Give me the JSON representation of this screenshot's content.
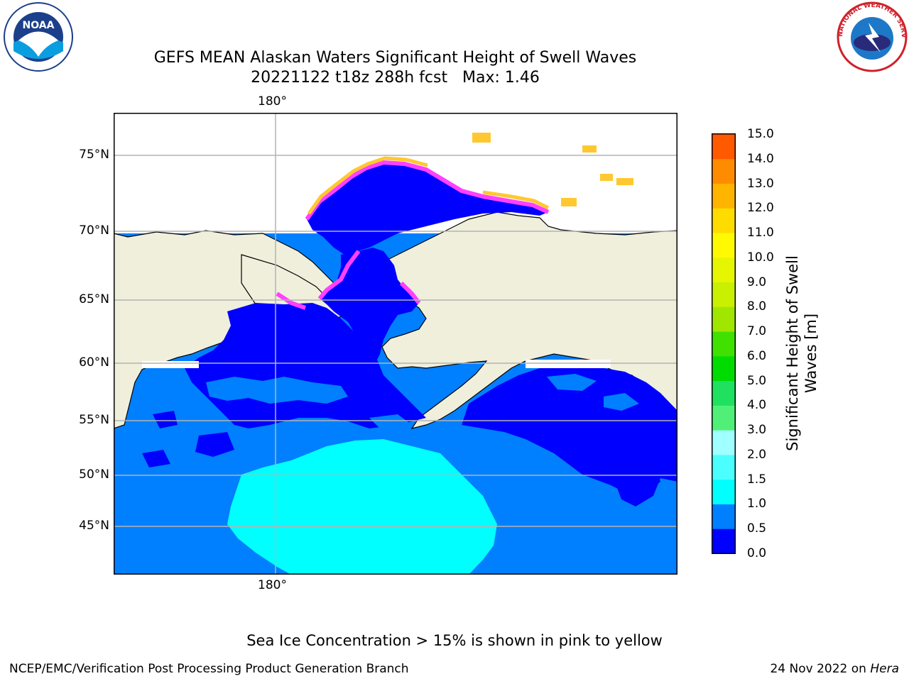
{
  "title_line1": "GEFS MEAN Alaskan Waters Significant Height of Swell Waves",
  "title_line2": "20221122 t18z 288h fcst   Max: 1.46",
  "longitude_labels": {
    "top": "180°",
    "bottom": "180°"
  },
  "latitude_labels": [
    "75°N",
    "70°N",
    "65°N",
    "60°N",
    "55°N",
    "50°N",
    "45°N"
  ],
  "colorbar": {
    "label_line1": "Significant Height of Swell",
    "label_line2": "Waves [m]",
    "ticks": [
      "15.0",
      "14.0",
      "13.0",
      "12.0",
      "11.0",
      "10.0",
      "9.0",
      "8.0",
      "7.0",
      "6.0",
      "5.0",
      "4.0",
      "3.0",
      "2.0",
      "1.5",
      "1.0",
      "0.5",
      "0.0"
    ],
    "colors": [
      "#0000ff",
      "#0080ff",
      "#00ffff",
      "#4cffff",
      "#a0ffff",
      "#50f078",
      "#20e060",
      "#00dc00",
      "#40e000",
      "#a0e600",
      "#c8f000",
      "#e6f600",
      "#fffa00",
      "#ffdc00",
      "#ffb400",
      "#ff8c00",
      "#ff5a00",
      "#ff2800",
      "#ff0000"
    ]
  },
  "map_colors": {
    "land": "#efefdc",
    "ocean_low": "#0000ff",
    "ocean_mid": "#0080ff",
    "ocean_high": "#00ffff",
    "ice_pink": "#ff40ff",
    "ice_yellow": "#ffc830",
    "grid": "#b4b4b4"
  },
  "logos": {
    "noaa_text": "NOAA",
    "nws_text": "NATIONAL WEATHER SERVICE"
  },
  "caption": "Sea Ice Concentration > 15% is shown in pink to yellow",
  "footer_left": "NCEP/EMC/Verification Post Processing Product Generation Branch",
  "footer_date": "24 Nov 2022 on ",
  "footer_machine": "Hera"
}
